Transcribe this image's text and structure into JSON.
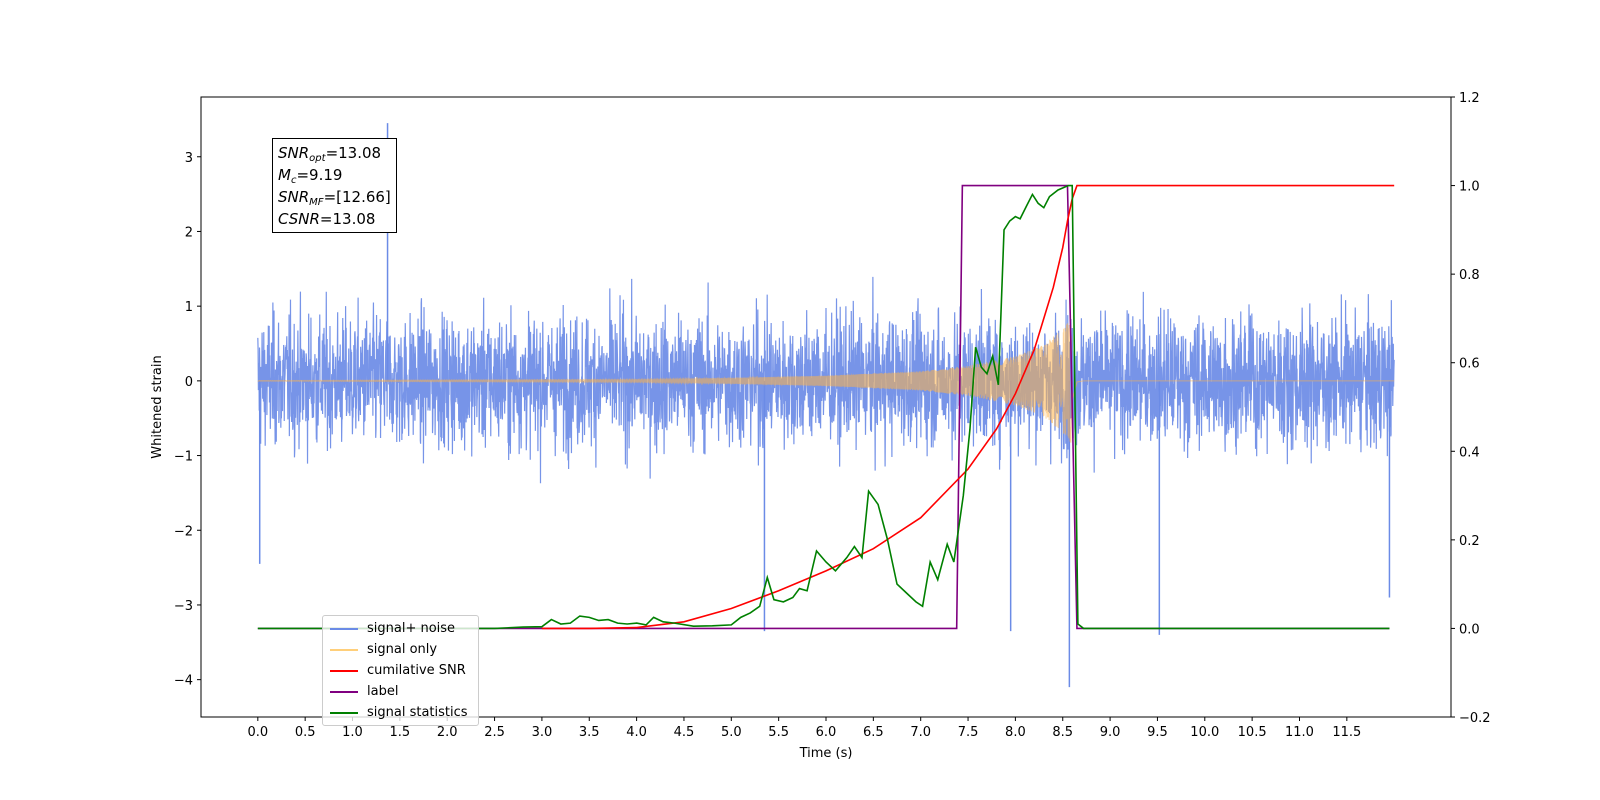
{
  "chart_data": {
    "type": "line",
    "xlabel": "Time (s)",
    "ylabel": "Whitened strain",
    "xlim": [
      -0.6,
      12.6
    ],
    "ylim": [
      -4.5,
      3.8
    ],
    "y2lim": [
      -0.2,
      1.2
    ],
    "x_ticks": [
      0.0,
      0.5,
      1.0,
      1.5,
      2.0,
      2.5,
      3.0,
      3.5,
      4.0,
      4.5,
      5.0,
      5.5,
      6.0,
      6.5,
      7.0,
      7.5,
      8.0,
      8.5,
      9.0,
      9.5,
      10.0,
      10.5,
      11.0,
      11.5
    ],
    "x_tick_labels": [
      "0.0",
      "0.5",
      "1.0",
      "1.5",
      "2.0",
      "2.5",
      "3.0",
      "3.5",
      "4.0",
      "4.5",
      "5.0",
      "5.5",
      "6.0",
      "6.5",
      "7.0",
      "7.5",
      "8.0",
      "8.5",
      "9.0",
      "9.5",
      "10.0",
      "10.5",
      "11.0",
      "11.5"
    ],
    "y_ticks": [
      -4,
      -3,
      -2,
      -1,
      0,
      1,
      2,
      3
    ],
    "y_tick_labels": [
      "−4",
      "−3",
      "−2",
      "−1",
      "0",
      "1",
      "2",
      "3"
    ],
    "y2_ticks": [
      -0.2,
      0.0,
      0.2,
      0.4,
      0.6,
      0.8,
      1.0,
      1.2
    ],
    "y2_tick_labels": [
      "−0.2",
      "0.0",
      "0.2",
      "0.4",
      "0.6",
      "0.8",
      "1.0",
      "1.2"
    ],
    "legend_position": "lower-left",
    "series": [
      {
        "name": "signal+ noise",
        "color": "#6b8be6",
        "axis": "left",
        "style": "noise",
        "x_range": [
          0.0,
          12.0
        ],
        "std": 0.85,
        "merger_time": 8.6,
        "spikes": [
          [
            1.37,
            3.45
          ],
          [
            5.35,
            -3.35
          ],
          [
            7.95,
            -3.35
          ],
          [
            8.57,
            -4.1
          ],
          [
            9.52,
            -3.4
          ],
          [
            0.02,
            -2.45
          ],
          [
            11.95,
            -2.9
          ]
        ]
      },
      {
        "name": "signal only",
        "color": "#ffb347",
        "axis": "left",
        "style": "chirp",
        "x_range": [
          0.0,
          12.0
        ],
        "merger_time": 8.6,
        "envelope": [
          [
            0.0,
            0.005
          ],
          [
            4.0,
            0.02
          ],
          [
            5.0,
            0.04
          ],
          [
            6.0,
            0.07
          ],
          [
            7.0,
            0.13
          ],
          [
            7.5,
            0.2
          ],
          [
            8.0,
            0.33
          ],
          [
            8.3,
            0.48
          ],
          [
            8.5,
            0.7
          ],
          [
            8.6,
            0.85
          ],
          [
            8.65,
            0.05
          ],
          [
            8.72,
            0.0
          ]
        ]
      },
      {
        "name": "cumilative SNR",
        "color": "#ff0000",
        "axis": "right",
        "points": [
          [
            3.0,
            0.0
          ],
          [
            3.5,
            0.0
          ],
          [
            4.0,
            0.002
          ],
          [
            4.5,
            0.015
          ],
          [
            5.0,
            0.045
          ],
          [
            5.5,
            0.085
          ],
          [
            6.0,
            0.13
          ],
          [
            6.5,
            0.18
          ],
          [
            7.0,
            0.25
          ],
          [
            7.5,
            0.36
          ],
          [
            7.8,
            0.45
          ],
          [
            8.0,
            0.53
          ],
          [
            8.2,
            0.63
          ],
          [
            8.4,
            0.77
          ],
          [
            8.5,
            0.86
          ],
          [
            8.55,
            0.92
          ],
          [
            8.6,
            0.97
          ],
          [
            8.65,
            1.0
          ],
          [
            12.0,
            1.0
          ]
        ]
      },
      {
        "name": "label",
        "color": "#800080",
        "axis": "right",
        "points": [
          [
            0.0,
            0.0
          ],
          [
            7.38,
            0.0
          ],
          [
            7.44,
            1.0
          ],
          [
            8.55,
            1.0
          ],
          [
            8.65,
            0.0
          ],
          [
            11.95,
            0.0
          ]
        ]
      },
      {
        "name": "signal statistics",
        "color": "#008000",
        "axis": "right",
        "points": [
          [
            0.0,
            0.0
          ],
          [
            2.5,
            0.0
          ],
          [
            2.8,
            0.003
          ],
          [
            3.0,
            0.004
          ],
          [
            3.1,
            0.02
          ],
          [
            3.2,
            0.01
          ],
          [
            3.3,
            0.012
          ],
          [
            3.4,
            0.028
          ],
          [
            3.5,
            0.025
          ],
          [
            3.6,
            0.018
          ],
          [
            3.7,
            0.02
          ],
          [
            3.8,
            0.012
          ],
          [
            3.9,
            0.01
          ],
          [
            4.0,
            0.012
          ],
          [
            4.1,
            0.008
          ],
          [
            4.18,
            0.025
          ],
          [
            4.28,
            0.015
          ],
          [
            4.4,
            0.012
          ],
          [
            4.6,
            0.005
          ],
          [
            4.8,
            0.006
          ],
          [
            5.0,
            0.008
          ],
          [
            5.1,
            0.025
          ],
          [
            5.2,
            0.035
          ],
          [
            5.3,
            0.05
          ],
          [
            5.38,
            0.115
          ],
          [
            5.45,
            0.065
          ],
          [
            5.55,
            0.06
          ],
          [
            5.65,
            0.07
          ],
          [
            5.72,
            0.09
          ],
          [
            5.8,
            0.085
          ],
          [
            5.9,
            0.175
          ],
          [
            6.0,
            0.15
          ],
          [
            6.1,
            0.13
          ],
          [
            6.22,
            0.16
          ],
          [
            6.3,
            0.185
          ],
          [
            6.38,
            0.16
          ],
          [
            6.45,
            0.31
          ],
          [
            6.55,
            0.28
          ],
          [
            6.65,
            0.2
          ],
          [
            6.75,
            0.1
          ],
          [
            6.85,
            0.08
          ],
          [
            6.95,
            0.06
          ],
          [
            7.02,
            0.05
          ],
          [
            7.1,
            0.15
          ],
          [
            7.18,
            0.11
          ],
          [
            7.28,
            0.19
          ],
          [
            7.35,
            0.15
          ],
          [
            7.45,
            0.3
          ],
          [
            7.52,
            0.45
          ],
          [
            7.58,
            0.635
          ],
          [
            7.64,
            0.59
          ],
          [
            7.7,
            0.575
          ],
          [
            7.76,
            0.615
          ],
          [
            7.82,
            0.55
          ],
          [
            7.88,
            0.9
          ],
          [
            7.94,
            0.92
          ],
          [
            8.0,
            0.93
          ],
          [
            8.05,
            0.925
          ],
          [
            8.12,
            0.955
          ],
          [
            8.18,
            0.98
          ],
          [
            8.24,
            0.96
          ],
          [
            8.3,
            0.95
          ],
          [
            8.36,
            0.975
          ],
          [
            8.45,
            0.99
          ],
          [
            8.56,
            1.0
          ],
          [
            8.6,
            1.0
          ],
          [
            8.63,
            0.5
          ],
          [
            8.66,
            0.01
          ],
          [
            8.72,
            0.0
          ],
          [
            11.95,
            0.0
          ]
        ]
      }
    ],
    "annotation": {
      "snr_opt_base": "SNR",
      "snr_opt_sub": "opt",
      "snr_opt_val": "=13.08",
      "mc_base": "M",
      "mc_sub": "c",
      "mc_val": "=9.19",
      "snr_mf_base": "SNR",
      "snr_mf_sub": "MF",
      "snr_mf_val": "=[12.66]",
      "csnr_base": "CSNR",
      "csnr_val": "=13.08"
    }
  }
}
